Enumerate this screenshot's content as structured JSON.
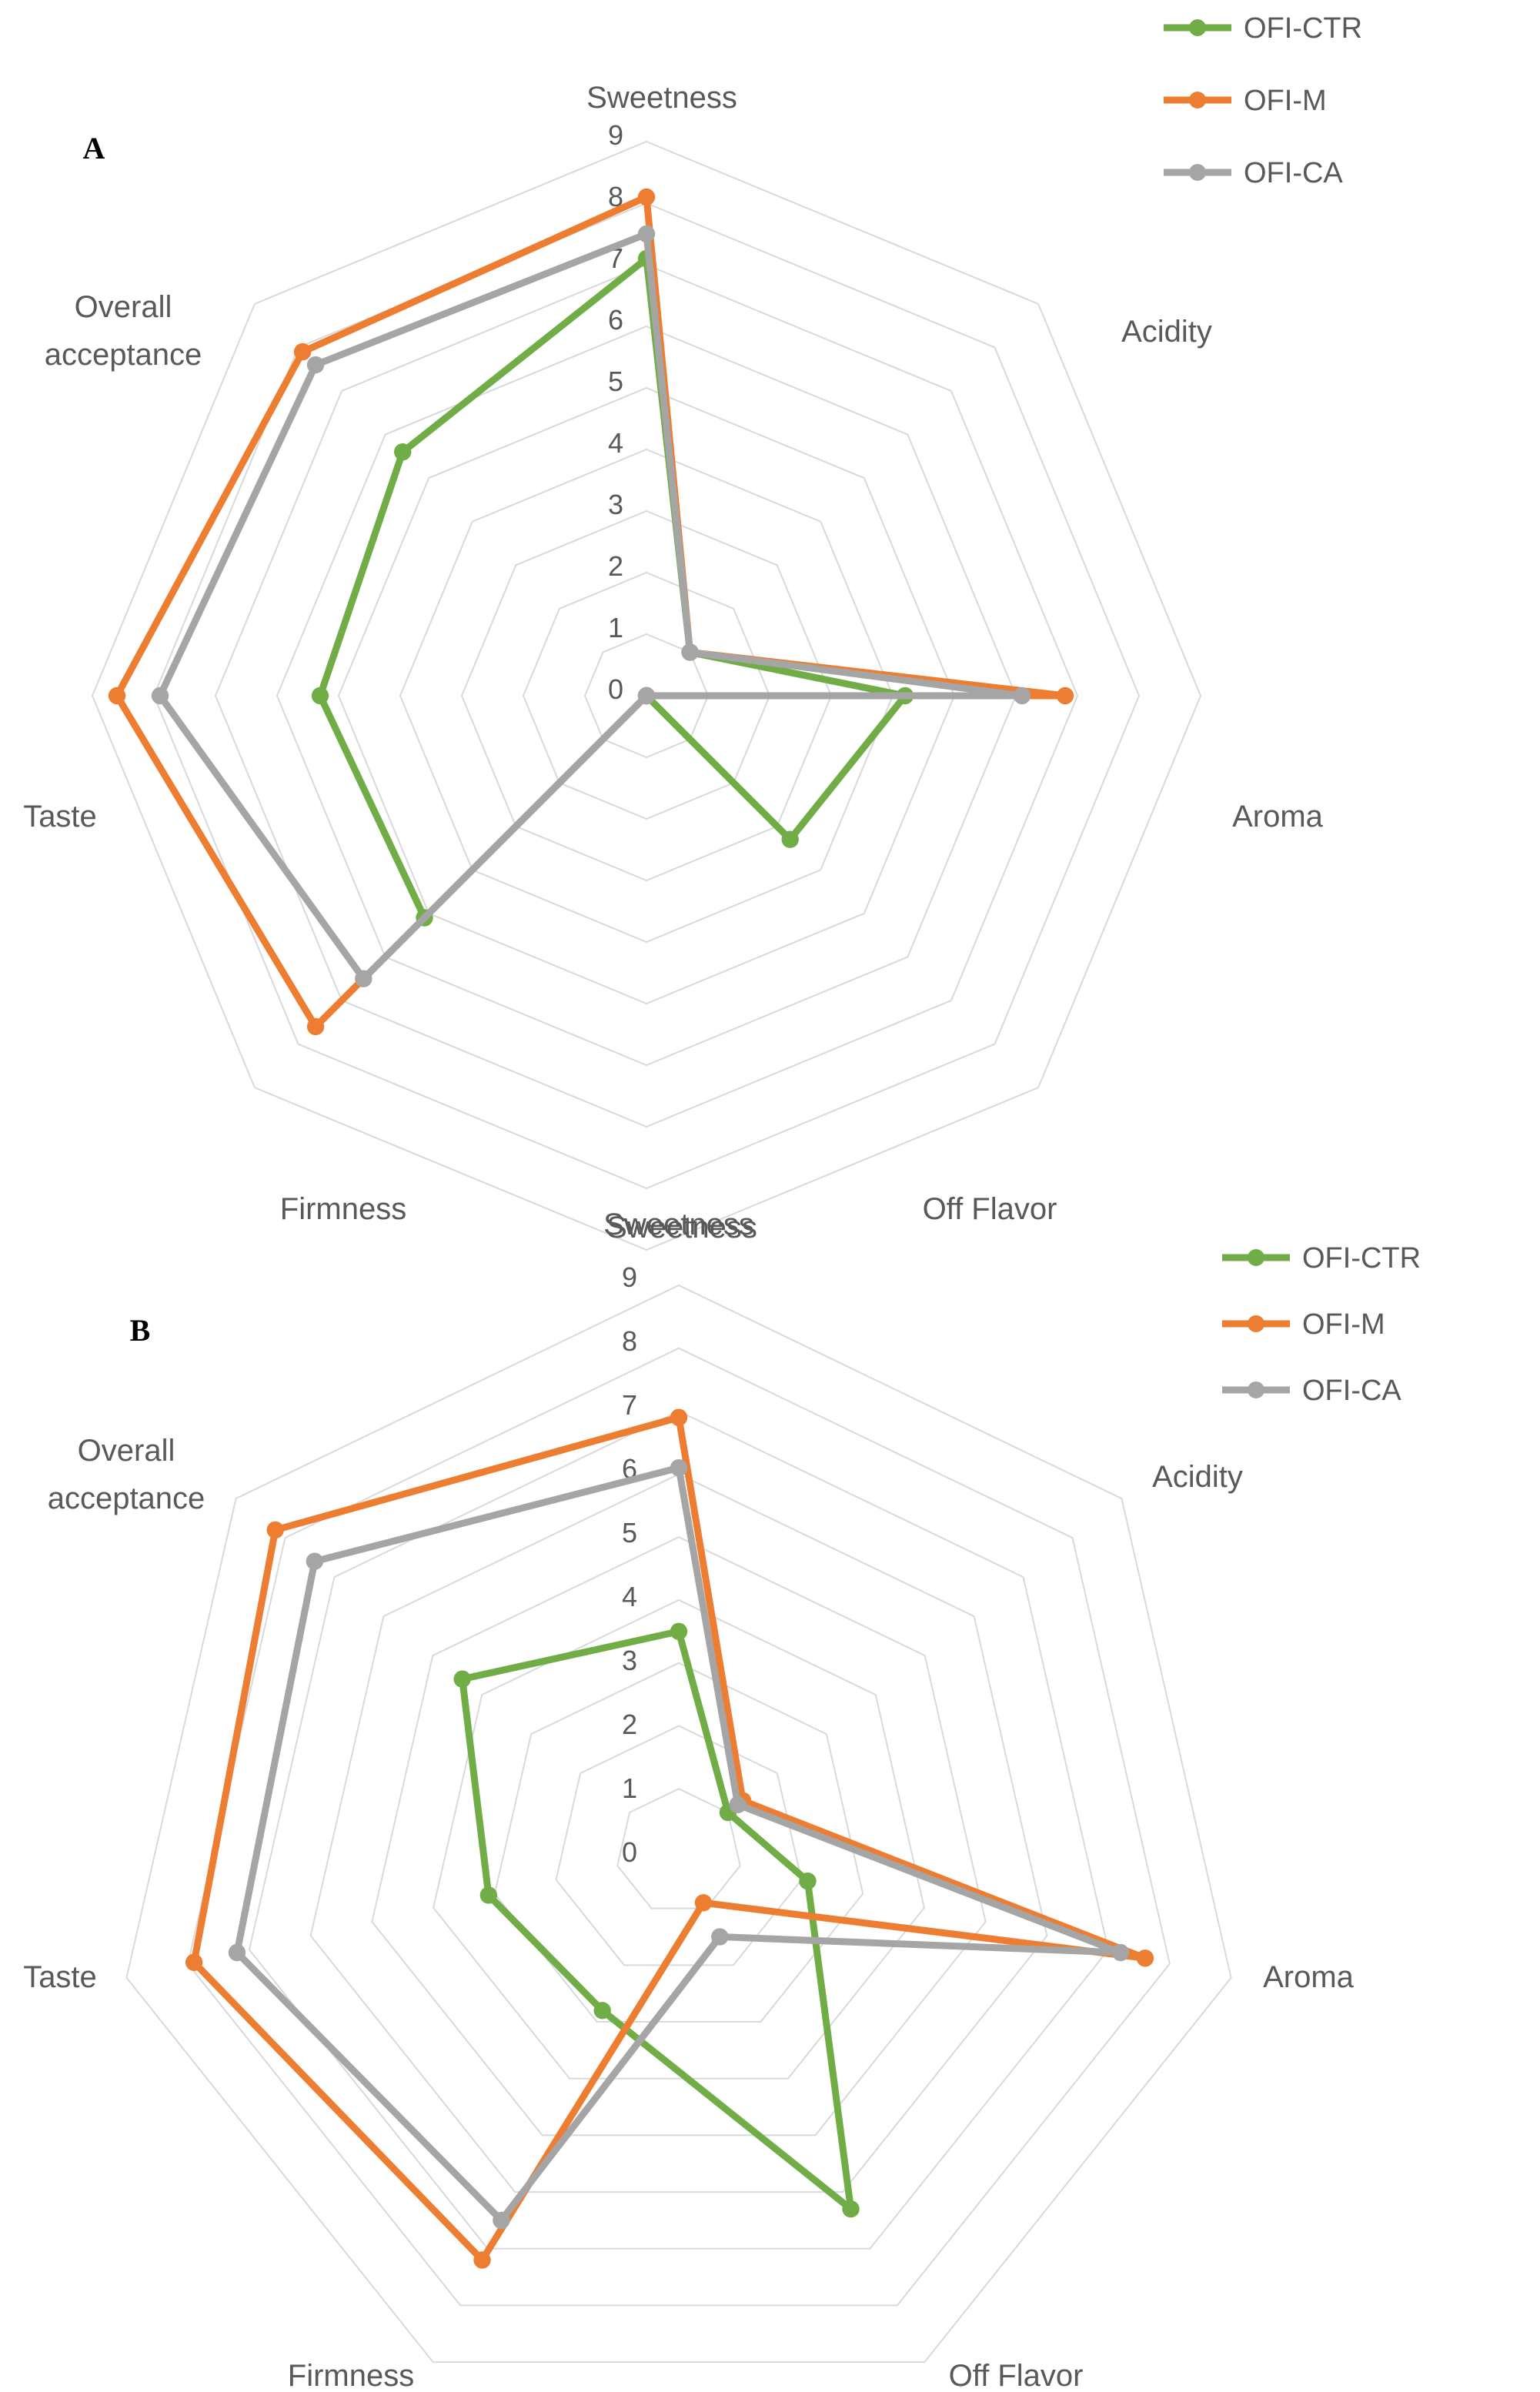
{
  "chart_data": [
    {
      "type": "radar",
      "panel": "A",
      "axes": [
        "Sweetness",
        "Acidity",
        "Aroma",
        "Off Flavor",
        "Sweetness",
        "Firmness",
        "Taste",
        "Overall acceptance"
      ],
      "ticks": [
        "0",
        "1",
        "2",
        "3",
        "4",
        "5",
        "6",
        "7",
        "8",
        "9"
      ],
      "range": [
        0,
        9
      ],
      "legend": [
        "OFI-CTR",
        "OFI-M",
        "OFI-CA"
      ],
      "series": [
        {
          "name": "OFI-CTR",
          "color": "#70AD47",
          "values": [
            7.1,
            1.0,
            4.2,
            3.3,
            0.0,
            5.1,
            5.3,
            5.6
          ]
        },
        {
          "name": "OFI-M",
          "color": "#ED7D31",
          "values": [
            8.1,
            1.0,
            6.8,
            0.0,
            0.0,
            7.6,
            8.6,
            7.9
          ]
        },
        {
          "name": "OFI-CA",
          "color": "#A5A5A5",
          "values": [
            7.5,
            1.0,
            6.1,
            0.0,
            0.0,
            6.5,
            7.9,
            7.6
          ]
        }
      ]
    },
    {
      "type": "radar",
      "panel": "B",
      "axes": [
        "Sweetness",
        "Acidity",
        "Aroma",
        "Off Flavor",
        "Firmness",
        "Taste",
        "Overall acceptance"
      ],
      "ticks": [
        "0",
        "1",
        "2",
        "3",
        "4",
        "5",
        "6",
        "7",
        "8",
        "9"
      ],
      "range": [
        0,
        9
      ],
      "legend": [
        "OFI-CTR",
        "OFI-M",
        "OFI-CA"
      ],
      "series": [
        {
          "name": "OFI-CTR",
          "color": "#70AD47",
          "values": [
            3.5,
            1.0,
            2.1,
            6.3,
            2.8,
            3.1,
            4.4
          ]
        },
        {
          "name": "OFI-M",
          "color": "#ED7D31",
          "values": [
            6.9,
            1.3,
            7.6,
            0.9,
            7.2,
            7.9,
            8.2
          ]
        },
        {
          "name": "OFI-CA",
          "color": "#A5A5A5",
          "values": [
            6.1,
            1.2,
            7.2,
            1.5,
            6.5,
            7.2,
            7.4
          ]
        }
      ]
    }
  ]
}
